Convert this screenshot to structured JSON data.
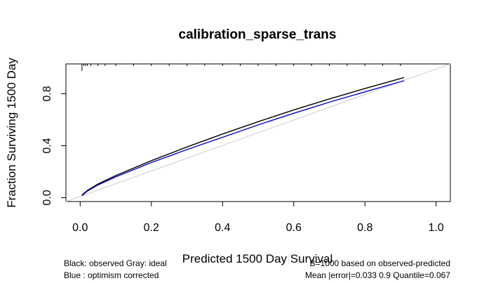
{
  "chart_data": {
    "type": "line",
    "title": "calibration_sparse_trans",
    "xlabel": "Predicted  1500 Day Survival",
    "ylabel": "Fraction Surviving 1500 Day",
    "xlim": [
      -0.04,
      1.04
    ],
    "ylim": [
      -0.03,
      1.03
    ],
    "xticks": [
      "0.0",
      "0.2",
      "0.4",
      "0.6",
      "0.8",
      "1.0"
    ],
    "yticks": [
      "0.0",
      "0.4",
      "0.8"
    ],
    "xtick_values": [
      0,
      0.2,
      0.4,
      0.6,
      0.8,
      1.0
    ],
    "ytick_values": [
      0,
      0.4,
      0.8
    ],
    "grid": false,
    "series": [
      {
        "name": "observed",
        "color": "#000000",
        "x": [
          0.005,
          0.02,
          0.05,
          0.1,
          0.2,
          0.3,
          0.4,
          0.5,
          0.6,
          0.7,
          0.8,
          0.91
        ],
        "y": [
          0.02,
          0.055,
          0.105,
          0.17,
          0.285,
          0.39,
          0.49,
          0.585,
          0.675,
          0.76,
          0.84,
          0.925
        ]
      },
      {
        "name": "optimism corrected",
        "color": "#0000cc",
        "x": [
          0.005,
          0.02,
          0.05,
          0.1,
          0.2,
          0.3,
          0.4,
          0.5,
          0.6,
          0.7,
          0.8,
          0.91
        ],
        "y": [
          0.015,
          0.05,
          0.098,
          0.16,
          0.27,
          0.37,
          0.465,
          0.56,
          0.65,
          0.735,
          0.815,
          0.9
        ]
      },
      {
        "name": "ideal",
        "color": "#cccccc",
        "x": [
          -0.04,
          1.04
        ],
        "y": [
          -0.04,
          1.04
        ]
      }
    ],
    "rug_top": [
      0.005,
      0.01,
      0.015,
      0.02,
      0.03,
      0.05,
      0.07,
      0.1,
      0.15,
      0.2,
      0.25,
      0.3,
      0.35,
      0.4,
      0.45,
      0.5,
      0.55,
      0.6,
      0.65,
      0.7,
      0.75,
      0.8,
      0.85,
      0.9
    ],
    "annotations": {
      "left_line1": "Black: observed  Gray: ideal",
      "left_line2": "Blue : optimism corrected",
      "right_line1": "B=1000 based on observed-predicted",
      "right_line2": "Mean |error|=0.033  0.9 Quantile=0.067"
    }
  }
}
